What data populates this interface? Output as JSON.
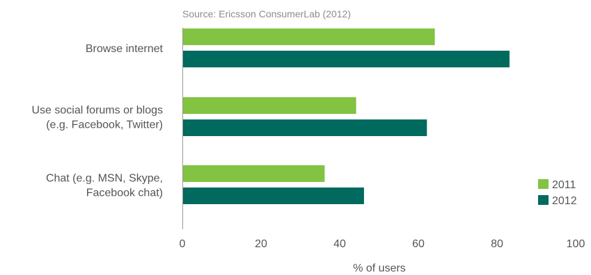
{
  "source": "Source: Ericsson ConsumerLab (2012)",
  "chart_data": {
    "type": "bar",
    "orientation": "horizontal",
    "categories": [
      [
        "Browse internet"
      ],
      [
        "Use social forums or blogs",
        "(e.g. Facebook, Twitter)"
      ],
      [
        "Chat (e.g. MSN, Skype,",
        "Facebook chat)"
      ]
    ],
    "series": [
      {
        "name": "2011",
        "color": "#82c341",
        "values": [
          64,
          44,
          36
        ]
      },
      {
        "name": "2012",
        "color": "#006a5e",
        "values": [
          83,
          62,
          46
        ]
      }
    ],
    "xlabel": "% of users",
    "xlim": [
      0,
      100
    ],
    "xticks": [
      0,
      20,
      40,
      60,
      80,
      100
    ],
    "grid": false,
    "legend": "bottom-right"
  }
}
